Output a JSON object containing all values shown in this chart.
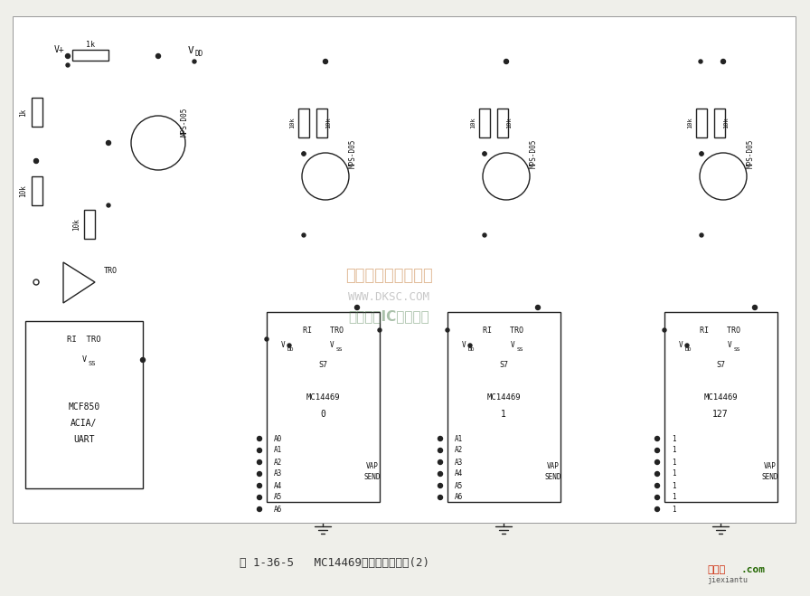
{
  "bg_color": "#efefea",
  "line_color": "#222222",
  "title": "图 1-36-5   MC14469典型应用电路图(2)",
  "watermark1": "杭州维库电子市场网",
  "watermark2": "WWW.DKSC.COM",
  "watermark3": "全球最大IC采购网站",
  "logo_color": "#cc2200",
  "logo_color2": "#226600"
}
